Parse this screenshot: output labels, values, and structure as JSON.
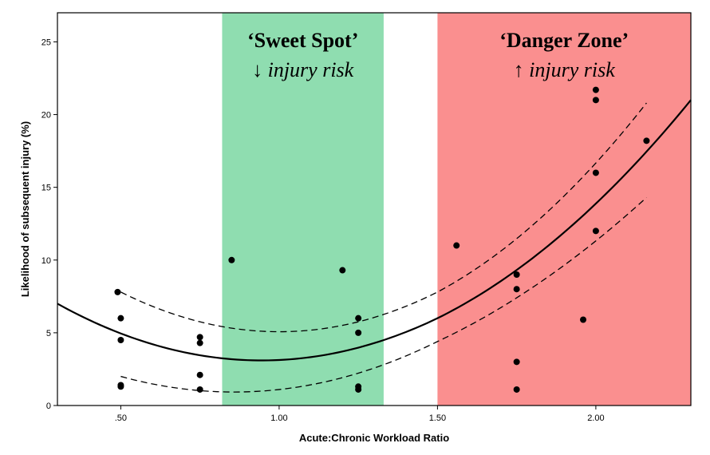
{
  "chart_data": {
    "type": "scatter",
    "xlabel": "Acute:Chronic Workload Ratio",
    "ylabel": "Likelihood of subsequent injury (%)",
    "xlim": [
      0.3,
      2.3
    ],
    "ylim": [
      0,
      27
    ],
    "x_ticks": [
      0.5,
      1.0,
      1.5,
      2.0
    ],
    "x_tick_labels": [
      ".50",
      "1.00",
      "1.50",
      "2.00"
    ],
    "y_ticks": [
      0,
      5,
      10,
      15,
      20,
      25
    ],
    "y_tick_labels": [
      "0",
      "5",
      "10",
      "15",
      "20",
      "25"
    ],
    "zones": [
      {
        "name": "sweet-spot",
        "x_from": 0.82,
        "x_to": 1.33,
        "color": "#8fddb0",
        "title": "‘Sweet Spot’",
        "subtitle": "↓ injury risk"
      },
      {
        "name": "danger-zone",
        "x_from": 1.5,
        "x_to": 2.3,
        "color": "#fa8f8f",
        "title": "‘Danger Zone’",
        "subtitle": "↑ injury risk"
      }
    ],
    "points": [
      {
        "x": 0.49,
        "y": 7.8
      },
      {
        "x": 0.5,
        "y": 6.0
      },
      {
        "x": 0.5,
        "y": 4.5
      },
      {
        "x": 0.5,
        "y": 1.4
      },
      {
        "x": 0.5,
        "y": 1.3
      },
      {
        "x": 0.75,
        "y": 4.7
      },
      {
        "x": 0.75,
        "y": 4.3
      },
      {
        "x": 0.75,
        "y": 2.1
      },
      {
        "x": 0.75,
        "y": 1.1
      },
      {
        "x": 0.85,
        "y": 10.0
      },
      {
        "x": 1.2,
        "y": 9.3
      },
      {
        "x": 1.25,
        "y": 6.0
      },
      {
        "x": 1.25,
        "y": 5.0
      },
      {
        "x": 1.25,
        "y": 1.3
      },
      {
        "x": 1.25,
        "y": 1.1
      },
      {
        "x": 1.56,
        "y": 11.0
      },
      {
        "x": 1.75,
        "y": 9.0
      },
      {
        "x": 1.75,
        "y": 8.0
      },
      {
        "x": 1.75,
        "y": 3.0
      },
      {
        "x": 1.75,
        "y": 1.1
      },
      {
        "x": 1.96,
        "y": 5.9
      },
      {
        "x": 2.0,
        "y": 21.7
      },
      {
        "x": 2.0,
        "y": 21.0
      },
      {
        "x": 2.0,
        "y": 16.0
      },
      {
        "x": 2.0,
        "y": 12.0
      },
      {
        "x": 2.16,
        "y": 18.2
      }
    ],
    "fit": {
      "type": "quadratic",
      "style": "solid",
      "x_range": [
        0.3,
        2.3
      ],
      "points": [
        [
          0.3,
          7.0
        ],
        [
          0.94,
          3.1
        ],
        [
          1.5,
          6.0
        ],
        [
          2.3,
          21.0
        ]
      ]
    },
    "ci_upper": {
      "style": "dashed",
      "x_range": [
        0.5,
        2.16
      ],
      "points": [
        [
          0.5,
          7.8
        ],
        [
          0.95,
          5.1
        ],
        [
          1.5,
          7.8
        ],
        [
          2.16,
          20.8
        ]
      ]
    },
    "ci_lower": {
      "style": "dashed",
      "x_range": [
        0.5,
        2.16
      ],
      "points": [
        [
          0.5,
          2.0
        ],
        [
          0.95,
          1.0
        ],
        [
          1.5,
          4.4
        ],
        [
          2.16,
          14.3
        ]
      ]
    }
  }
}
